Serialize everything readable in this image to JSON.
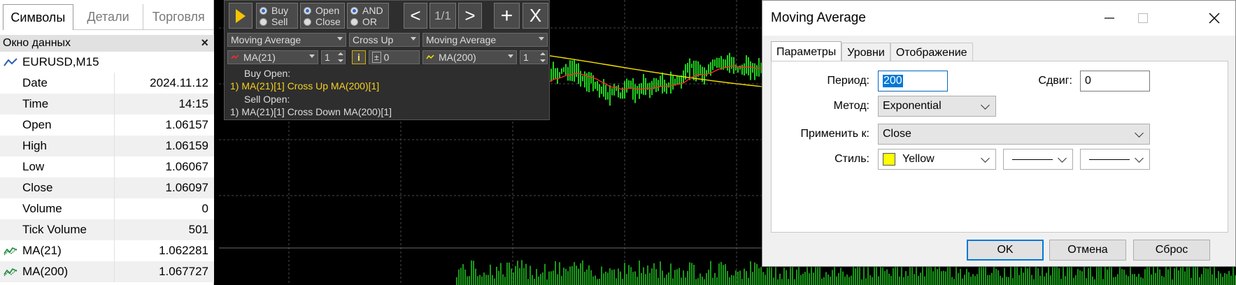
{
  "navigator": {
    "tabs": [
      {
        "label": "Символы",
        "active": true
      },
      {
        "label": "Детали",
        "active": false
      },
      {
        "label": "Торговля",
        "active": false
      }
    ]
  },
  "data_window": {
    "title": "Окно данных",
    "symbol": "EURUSD,M15",
    "rows": [
      {
        "key": "Date",
        "value": "2024.11.12"
      },
      {
        "key": "Time",
        "value": "14:15"
      },
      {
        "key": "Open",
        "value": "1.06157"
      },
      {
        "key": "High",
        "value": "1.06159"
      },
      {
        "key": "Low",
        "value": "1.06067"
      },
      {
        "key": "Close",
        "value": "1.06097"
      },
      {
        "key": "Volume",
        "value": "0"
      },
      {
        "key": "Tick Volume",
        "value": "501"
      },
      {
        "key": "MA(21)",
        "value": "1.062281"
      },
      {
        "key": "MA(200)",
        "value": "1.067727"
      }
    ]
  },
  "toolbar": {
    "direction": {
      "buy": "Buy",
      "sell": "Sell",
      "selected": "Buy"
    },
    "mode": {
      "open": "Open",
      "close": "Close",
      "selected": "Open"
    },
    "logic": {
      "and": "AND",
      "or": "OR",
      "selected": "AND"
    },
    "prev": "<",
    "page": "1/1",
    "next": ">",
    "add": "+",
    "remove": "X",
    "indicator1": "Moving Average",
    "condition": "Cross Up",
    "indicator2": "Moving Average",
    "ma_fast": "MA(21)",
    "shift1": "1",
    "info": "i",
    "offset_sign": "±",
    "offset": "0",
    "ma_slow": "MA(200)",
    "shift2": "1",
    "buy_open_label": "Buy Open:",
    "buy_open_rule": "1) MA(21)[1] Cross Up MA(200)[1]",
    "sell_open_label": "Sell Open:",
    "sell_open_rule": "1) MA(21)[1] Cross Down MA(200)[1]",
    "colors": {
      "fast": "#ff2a2a",
      "slow": "#f5e100",
      "rule_buy": "#f5d020"
    }
  },
  "dialog": {
    "title": "Moving Average",
    "tabs": [
      {
        "label": "Параметры",
        "active": true
      },
      {
        "label": "Уровни",
        "active": false
      },
      {
        "label": "Отображение",
        "active": false
      }
    ],
    "period_label": "Период:",
    "period_value": "200",
    "shift_label": "Сдвиг:",
    "shift_value": "0",
    "method_label": "Метод:",
    "method_value": "Exponential",
    "apply_label": "Применить к:",
    "apply_value": "Close",
    "style_label": "Стиль:",
    "style_color": "Yellow",
    "buttons": {
      "ok": "OK",
      "cancel": "Отмена",
      "reset": "Сброс"
    }
  }
}
